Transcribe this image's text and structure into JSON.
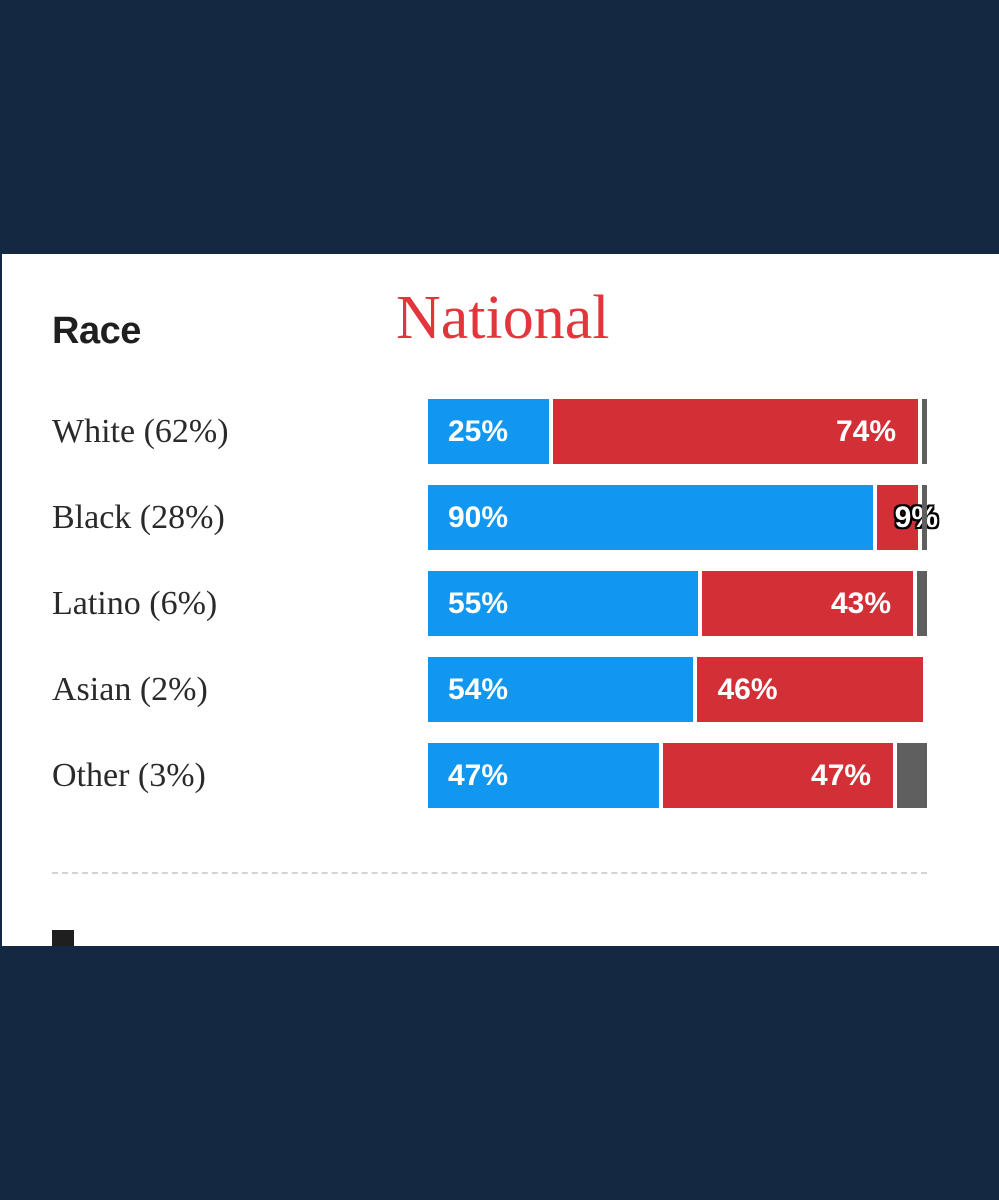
{
  "section": {
    "heading": "Race"
  },
  "overlay_title": "National",
  "colors": {
    "democrat": "#1197ef",
    "republican": "#d32f37",
    "other": "#5f5f5f",
    "title": "#e2363c",
    "frame": "#152841"
  },
  "chart_data": {
    "type": "bar",
    "orientation": "horizontal",
    "stacked": true,
    "normalized_to": 100,
    "title": "National",
    "categories": [
      "White (62%)",
      "Black (28%)",
      "Latino (6%)",
      "Asian (2%)",
      "Other (3%)"
    ],
    "series": [
      {
        "color": "#1197ef",
        "values": [
          25,
          90,
          55,
          54,
          47
        ],
        "labels": [
          "25%",
          "90%",
          "55%",
          "54%",
          "47%"
        ]
      },
      {
        "color": "#d32f37",
        "values": [
          74,
          9,
          43,
          46,
          47
        ],
        "labels": [
          "74%",
          "9%",
          "43%",
          "46%",
          "47%"
        ]
      },
      {
        "color": "#5f5f5f",
        "values": [
          1,
          1,
          2,
          0,
          6
        ]
      }
    ],
    "legend": "none",
    "grid": false
  }
}
